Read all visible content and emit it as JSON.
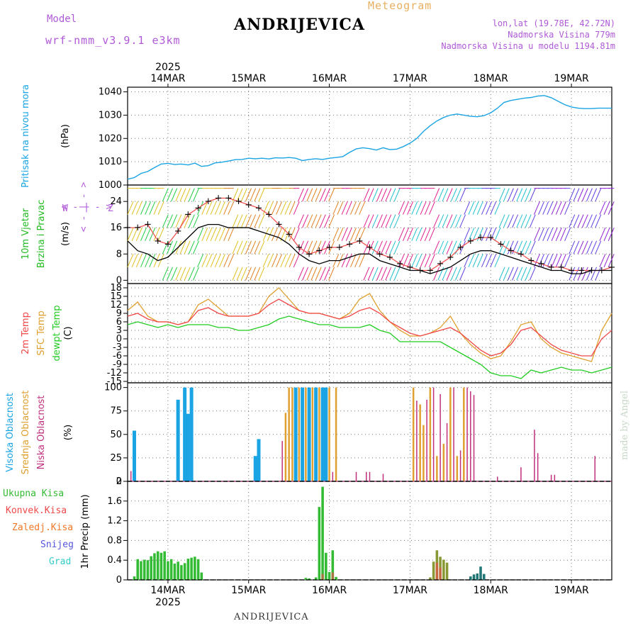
{
  "header": {
    "model_label": "Model",
    "model_name": "wrf-nmm_v3.9.1 e3km",
    "title": "ANDRIJEVICA",
    "meteogram": "Meteogram",
    "lonlat": "lon,lat (19.78E, 42.72N)",
    "elevation": "Nadmorska Visina 779m",
    "model_elevation": "Nadmorska Visina u modelu 1194.81m"
  },
  "footer": {
    "location": "ANDRIJEVICA",
    "watermark": "made by Angel"
  },
  "time_axis": {
    "year": "2025",
    "days": [
      "14MAR",
      "15MAR",
      "16MAR",
      "17MAR",
      "18MAR",
      "19MAR"
    ],
    "start_hour": 0,
    "end_hour": 144,
    "day_positions_hours": [
      12,
      36,
      60,
      84,
      108,
      132
    ]
  },
  "colors": {
    "pressure": "#1aa4e4",
    "wind_speed": "#000000",
    "gust": "#f04848",
    "temp2m": "#f04848",
    "sfc_temp": "#e0a030",
    "dewpt": "#22cc22",
    "high_cloud": "#1aa4e4",
    "mid_cloud": "#e0a030",
    "low_cloud": "#c0307c",
    "total_precip": "#33bb33",
    "conv_precip": "#f04848",
    "frz_precip": "#f07828",
    "snow": "#5555dd",
    "graupel": "#33cccc",
    "purple": "#b05ad8",
    "green_label": "#22bb22"
  },
  "chart_data": [
    {
      "type": "line",
      "panel": "pressure",
      "ylabel_left": "Pritisak na nivou mora",
      "unit": "(hPa)",
      "ylim": [
        1000,
        1042
      ],
      "yticks": [
        1000,
        1010,
        1020,
        1030,
        1040
      ],
      "x": [
        0,
        2,
        4,
        6,
        8,
        10,
        12,
        14,
        16,
        18,
        20,
        22,
        24,
        26,
        28,
        30,
        32,
        34,
        36,
        38,
        40,
        42,
        44,
        46,
        48,
        50,
        52,
        54,
        56,
        58,
        60,
        62,
        64,
        66,
        68,
        70,
        72,
        74,
        76,
        78,
        80,
        82,
        84,
        86,
        88,
        90,
        92,
        94,
        96,
        98,
        100,
        102,
        104,
        106,
        108,
        110,
        112,
        114,
        116,
        118,
        120,
        122,
        124,
        126,
        128,
        130,
        132,
        134,
        136,
        138,
        140,
        142,
        144
      ],
      "values": [
        1002.5,
        1003.2,
        1005.0,
        1005.8,
        1007.5,
        1009.0,
        1009.3,
        1008.8,
        1009.0,
        1008.6,
        1009.4,
        1008.0,
        1008.3,
        1009.5,
        1009.8,
        1010.3,
        1010.9,
        1011.0,
        1011.5,
        1011.3,
        1011.5,
        1011.2,
        1011.7,
        1011.6,
        1011.8,
        1011.5,
        1010.5,
        1011.0,
        1011.3,
        1011.0,
        1011.5,
        1011.8,
        1012.2,
        1014.0,
        1015.5,
        1016.0,
        1015.6,
        1015.0,
        1016.0,
        1015.2,
        1015.4,
        1016.5,
        1018.0,
        1020.0,
        1023.0,
        1025.5,
        1027.5,
        1029.0,
        1030.0,
        1030.5,
        1030.0,
        1029.5,
        1029.3,
        1029.8,
        1031.0,
        1033.0,
        1035.5,
        1036.3,
        1036.8,
        1037.3,
        1037.6,
        1038.2,
        1038.4,
        1037.5,
        1036.0,
        1034.5,
        1033.5,
        1033.0,
        1032.8,
        1032.8,
        1033.0,
        1033.0,
        1033.0
      ]
    },
    {
      "type": "line",
      "panel": "wind",
      "ylabel_left": "10m Vjetar",
      "ylabel_left2": "Brzina i Pravac",
      "unit": "(m/s)",
      "compass": [
        "W",
        "<",
        "-",
        "|",
        "-",
        ">",
        "Z"
      ],
      "ylim": [
        -1,
        29
      ],
      "yticks": [
        0,
        8,
        16,
        24
      ],
      "x": [
        0,
        3,
        6,
        9,
        12,
        15,
        18,
        21,
        24,
        27,
        30,
        33,
        36,
        39,
        42,
        45,
        48,
        51,
        54,
        57,
        60,
        63,
        66,
        69,
        72,
        75,
        78,
        81,
        84,
        87,
        90,
        93,
        96,
        99,
        102,
        105,
        108,
        111,
        114,
        117,
        120,
        123,
        126,
        129,
        132,
        135,
        138,
        141,
        144
      ],
      "series": [
        {
          "name": "speed",
          "values": [
            12,
            9,
            8,
            6,
            7,
            10,
            13,
            16,
            17,
            17,
            16,
            16,
            16,
            15,
            14,
            13,
            11,
            8,
            6,
            5,
            6,
            6,
            7,
            8,
            8,
            6,
            5,
            4,
            3,
            3,
            2,
            3,
            4,
            6,
            8,
            9,
            9,
            8,
            7,
            6,
            5,
            4,
            3,
            3,
            2,
            2,
            3,
            3,
            3
          ]
        },
        {
          "name": "gust",
          "values": [
            16,
            16,
            17,
            12,
            11,
            15,
            20,
            22,
            24,
            25,
            25,
            24,
            23,
            22,
            20,
            17,
            14,
            10,
            8,
            9,
            10,
            10,
            11,
            12,
            10,
            8,
            7,
            5,
            4,
            3,
            3,
            5,
            7,
            10,
            12,
            13,
            13,
            11,
            9,
            8,
            6,
            5,
            4,
            4,
            3,
            3,
            3,
            3,
            4
          ]
        }
      ]
    },
    {
      "type": "line",
      "panel": "temperature",
      "ylabels": [
        "2m Temp",
        "SFC Temp",
        "dewpt Temp"
      ],
      "unit": "(C)",
      "ylim": [
        -15.5,
        19.5
      ],
      "yticks": [
        18,
        15,
        12,
        9,
        6,
        3,
        0,
        -3,
        -6,
        -9,
        -12,
        -15
      ],
      "x": [
        0,
        3,
        6,
        9,
        12,
        15,
        18,
        21,
        24,
        27,
        30,
        33,
        36,
        39,
        42,
        45,
        48,
        51,
        54,
        57,
        60,
        63,
        66,
        69,
        72,
        75,
        78,
        81,
        84,
        87,
        90,
        93,
        96,
        99,
        102,
        105,
        108,
        111,
        114,
        117,
        120,
        123,
        126,
        129,
        132,
        135,
        138,
        141,
        144
      ],
      "series": [
        {
          "name": "2m Temp",
          "values": [
            8,
            9,
            7,
            6,
            6,
            5,
            6,
            10,
            11,
            9,
            8,
            8,
            8,
            9,
            12,
            14,
            12,
            10,
            9,
            9,
            8,
            7,
            8,
            10,
            11,
            9,
            6,
            4,
            2,
            1,
            2,
            3,
            4,
            2,
            -1,
            -4,
            -6,
            -5,
            -2,
            3,
            4,
            1,
            -2,
            -4,
            -5,
            -6,
            -6,
            0,
            3
          ]
        },
        {
          "name": "SFC Temp",
          "values": [
            10,
            13,
            8,
            6,
            6,
            5,
            6,
            12,
            14,
            11,
            8,
            8,
            8,
            9,
            15,
            18,
            14,
            10,
            9,
            9,
            8,
            7,
            9,
            14,
            16,
            10,
            6,
            3,
            1,
            1,
            2,
            4,
            8,
            2,
            -2,
            -5,
            -7,
            -6,
            -1,
            5,
            6,
            0,
            -3,
            -5,
            -6,
            -7,
            -8,
            3,
            9
          ]
        },
        {
          "name": "dewpt Temp",
          "values": [
            5,
            6,
            5,
            4,
            5,
            4,
            5,
            5,
            5,
            4,
            4,
            3,
            3,
            4,
            5,
            7,
            8,
            7,
            6,
            5,
            5,
            4,
            4,
            4,
            5,
            3,
            2,
            -1,
            -1,
            -1,
            -1,
            -1,
            -3,
            -5,
            -7,
            -9,
            -12,
            -13,
            -13,
            -14,
            -11,
            -12,
            -11,
            -10,
            -11,
            -11,
            -12,
            -11,
            -10
          ]
        }
      ]
    },
    {
      "type": "bar",
      "panel": "clouds",
      "ylabels": [
        "Visoka Oblacnost",
        "Srednja Oblacnost",
        "Niska Oblacnost"
      ],
      "unit": "(%)",
      "ylim": [
        0,
        105
      ],
      "yticks": [
        0,
        25,
        50,
        75,
        100
      ],
      "series": [
        {
          "name": "Visoka Oblacnost",
          "bars": [
            [
              2,
              54
            ],
            [
              15,
              87
            ],
            [
              17,
              100
            ],
            [
              18,
              72
            ],
            [
              19,
              100
            ],
            [
              38,
              27
            ],
            [
              39,
              45
            ],
            [
              50,
              100
            ],
            [
              52,
              100
            ],
            [
              54,
              100
            ],
            [
              56,
              100
            ],
            [
              58,
              100
            ],
            [
              59,
              100
            ]
          ]
        },
        {
          "name": "Srednja Oblacnost",
          "bars": [
            [
              47,
              73
            ],
            [
              48,
              100
            ],
            [
              49,
              100
            ],
            [
              51,
              100
            ],
            [
              53,
              100
            ],
            [
              55,
              100
            ],
            [
              57,
              100
            ],
            [
              60,
              100
            ],
            [
              62,
              100
            ],
            [
              85,
              100
            ],
            [
              87,
              82
            ],
            [
              88,
              60
            ],
            [
              90,
              100
            ],
            [
              92,
              27
            ],
            [
              94,
              40
            ],
            [
              96,
              100
            ],
            [
              98,
              27
            ],
            [
              100,
              100
            ]
          ]
        },
        {
          "name": "Niska Oblacnost",
          "bars": [
            [
              1,
              11
            ],
            [
              46,
              43
            ],
            [
              61,
              10
            ],
            [
              68,
              10
            ],
            [
              71,
              10
            ],
            [
              72,
              10
            ],
            [
              76,
              8
            ],
            [
              86,
              86
            ],
            [
              89,
              87
            ],
            [
              91,
              100
            ],
            [
              93,
              93
            ],
            [
              95,
              62
            ],
            [
              97,
              100
            ],
            [
              99,
              33
            ],
            [
              101,
              100
            ],
            [
              102,
              96
            ],
            [
              103,
              92
            ],
            [
              110,
              5
            ],
            [
              117,
              15
            ],
            [
              121,
              55
            ],
            [
              122,
              30
            ],
            [
              126,
              7
            ],
            [
              127,
              7
            ],
            [
              139,
              27
            ]
          ]
        }
      ]
    },
    {
      "type": "bar",
      "panel": "precipitation",
      "ylabels": [
        "Ukupna Kisa",
        "Konvek.Kisa",
        "Zaledj.Kisa",
        "Snijeg",
        "Grad"
      ],
      "unit": "1hr Precip (mm)",
      "ylim": [
        0,
        2.0
      ],
      "yticks": [
        0,
        0.4,
        0.8,
        1.2,
        1.6,
        2
      ],
      "series": [
        {
          "name": "Ukupna Kisa",
          "bars": [
            [
              2,
              0.07
            ],
            [
              3,
              0.42
            ],
            [
              4,
              0.38
            ],
            [
              5,
              0.41
            ],
            [
              6,
              0.4
            ],
            [
              7,
              0.48
            ],
            [
              8,
              0.54
            ],
            [
              9,
              0.58
            ],
            [
              10,
              0.55
            ],
            [
              11,
              0.58
            ],
            [
              12,
              0.38
            ],
            [
              13,
              0.42
            ],
            [
              14,
              0.33
            ],
            [
              15,
              0.37
            ],
            [
              16,
              0.3
            ],
            [
              17,
              0.34
            ],
            [
              18,
              0.43
            ],
            [
              19,
              0.45
            ],
            [
              20,
              0.47
            ],
            [
              21,
              0.42
            ],
            [
              22,
              0.15
            ],
            [
              53,
              0.04
            ],
            [
              54,
              0.03
            ],
            [
              56,
              0.05
            ],
            [
              57,
              1.48
            ],
            [
              58,
              1.89
            ],
            [
              59,
              0.55
            ],
            [
              60,
              0.16
            ],
            [
              61,
              0.6
            ],
            [
              62,
              0.06
            ],
            [
              90,
              0.05
            ],
            [
              91,
              0.37
            ],
            [
              92,
              0.6
            ],
            [
              93,
              0.47
            ],
            [
              94,
              0.41
            ],
            [
              95,
              0.35
            ],
            [
              102,
              0.07
            ],
            [
              103,
              0.11
            ],
            [
              104,
              0.13
            ],
            [
              105,
              0.27
            ],
            [
              106,
              0.12
            ]
          ]
        },
        {
          "name": "Konvek.Kisa",
          "bars": [
            [
              58,
              0.12
            ],
            [
              61,
              0.15
            ],
            [
              92,
              0.35
            ],
            [
              93,
              0.25
            ]
          ]
        }
      ]
    }
  ]
}
